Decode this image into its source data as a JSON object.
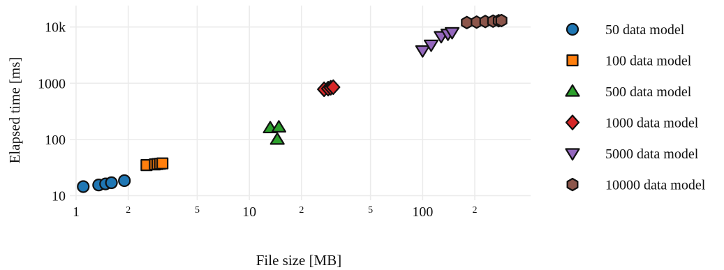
{
  "chart_data": {
    "type": "scatter",
    "title": "",
    "xlabel": "File size [MB]",
    "ylabel": "Elapsed time [ms]",
    "x_scale": "log",
    "y_scale": "log",
    "xlim": [
      0.92,
      420
    ],
    "ylim": [
      8.3,
      24000
    ],
    "x_major_ticks": [
      {
        "value": 1,
        "label": "1"
      },
      {
        "value": 10,
        "label": "10"
      },
      {
        "value": 100,
        "label": "100"
      }
    ],
    "x_minor_ticks": [
      {
        "value": 2,
        "label": "2"
      },
      {
        "value": 5,
        "label": "5"
      },
      {
        "value": 20,
        "label": "2"
      },
      {
        "value": 50,
        "label": "5"
      },
      {
        "value": 200,
        "label": "2"
      }
    ],
    "y_ticks": [
      {
        "value": 10,
        "label": "10"
      },
      {
        "value": 100,
        "label": "100"
      },
      {
        "value": 1000,
        "label": "1000"
      },
      {
        "value": 10000,
        "label": "10k"
      }
    ],
    "grid": true,
    "legend_position": "right",
    "series": [
      {
        "name": "50 data model",
        "marker": "circle",
        "color": "#1f77b4",
        "points": [
          [
            1.1,
            14.5
          ],
          [
            1.35,
            15.5
          ],
          [
            1.48,
            16.2
          ],
          [
            1.6,
            17.0
          ],
          [
            1.9,
            18.5
          ]
        ]
      },
      {
        "name": "100 data model",
        "marker": "square",
        "color": "#ff7f0e",
        "points": [
          [
            2.55,
            35
          ],
          [
            2.85,
            36
          ],
          [
            2.95,
            36.5
          ],
          [
            3.05,
            37
          ],
          [
            3.15,
            37.5
          ]
        ]
      },
      {
        "name": "500 data model",
        "marker": "triangle-up",
        "color": "#2ca02c",
        "points": [
          [
            13.2,
            160
          ],
          [
            14.5,
            100
          ],
          [
            14.8,
            165
          ]
        ]
      },
      {
        "name": "1000 data model",
        "marker": "diamond",
        "color": "#d62728",
        "points": [
          [
            27,
            780
          ],
          [
            28.5,
            800
          ],
          [
            29.5,
            830
          ],
          [
            30.5,
            850
          ]
        ]
      },
      {
        "name": "5000 data model",
        "marker": "triangle-down",
        "color": "#9467bd",
        "points": [
          [
            100,
            3800
          ],
          [
            112,
            4800
          ],
          [
            128,
            6800
          ],
          [
            140,
            7500
          ],
          [
            148,
            8000
          ]
        ]
      },
      {
        "name": "10000 data model",
        "marker": "hexagon",
        "color": "#8c564b",
        "points": [
          [
            180,
            12000
          ],
          [
            205,
            12200
          ],
          [
            230,
            12500
          ],
          [
            255,
            12700
          ],
          [
            275,
            12900
          ],
          [
            285,
            13000
          ]
        ]
      }
    ]
  }
}
